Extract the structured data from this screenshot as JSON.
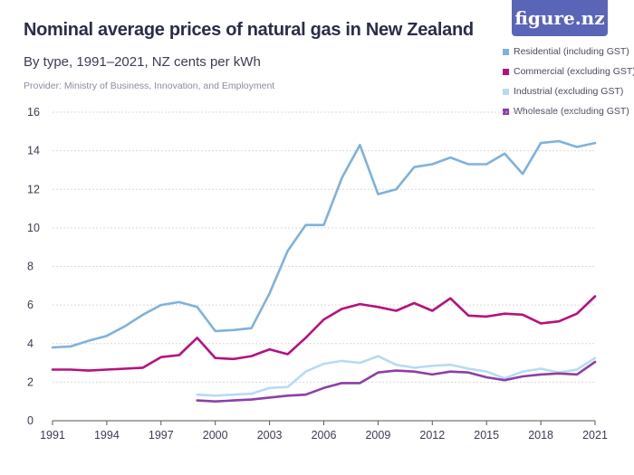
{
  "header": {
    "title": "Nominal average prices of natural gas in New Zealand",
    "subtitle": "By type, 1991–2021, NZ cents per kWh",
    "provider": "Provider: Ministry of Business, Innovation, and Employment",
    "logo_text": "figure.nz"
  },
  "colors": {
    "residential": "#7eb2dd",
    "commercial": "#b5117e",
    "industrial": "#b6dbf3",
    "wholesale": "#8c3fa5",
    "grid": "#d9d9d9",
    "axis": "#555555",
    "logo_bg": "#5b65b7"
  },
  "chart_data": {
    "type": "line",
    "title": "Nominal average prices of natural gas in New Zealand",
    "subtitle": "By type, 1991–2021, NZ cents per kWh",
    "xlabel": "",
    "ylabel": "",
    "xlim": [
      1991,
      2021
    ],
    "ylim": [
      0,
      16
    ],
    "x_ticks": [
      "1991",
      "1994",
      "1997",
      "2000",
      "2003",
      "2006",
      "2009",
      "2012",
      "2015",
      "2018",
      "2021"
    ],
    "y_ticks": [
      "0",
      "2",
      "4",
      "6",
      "8",
      "10",
      "12",
      "14",
      "16"
    ],
    "grid": "horizontal",
    "legend_position": "top-right",
    "series": [
      {
        "key": "residential",
        "name": "Residential (including GST)",
        "x": [
          1991,
          1992,
          1993,
          1994,
          1995,
          1996,
          1997,
          1998,
          1999,
          2000,
          2001,
          2002,
          2003,
          2004,
          2005,
          2006,
          2007,
          2008,
          2009,
          2010,
          2011,
          2012,
          2013,
          2014,
          2015,
          2016,
          2017,
          2018,
          2019,
          2020,
          2021
        ],
        "y": [
          3.8,
          3.85,
          4.15,
          4.4,
          4.9,
          5.5,
          6.0,
          6.15,
          5.9,
          4.65,
          4.7,
          4.8,
          6.6,
          8.8,
          10.15,
          10.15,
          12.6,
          14.3,
          11.75,
          12.0,
          13.15,
          13.3,
          13.65,
          13.3,
          13.3,
          13.85,
          12.8,
          14.4,
          14.5,
          14.2,
          14.4
        ]
      },
      {
        "key": "commercial",
        "name": "Commercial (excluding GST)",
        "x": [
          1991,
          1992,
          1993,
          1994,
          1995,
          1996,
          1997,
          1998,
          1999,
          2000,
          2001,
          2002,
          2003,
          2004,
          2005,
          2006,
          2007,
          2008,
          2009,
          2010,
          2011,
          2012,
          2013,
          2014,
          2015,
          2016,
          2017,
          2018,
          2019,
          2020,
          2021
        ],
        "y": [
          2.65,
          2.65,
          2.6,
          2.65,
          2.7,
          2.75,
          3.3,
          3.4,
          4.3,
          3.25,
          3.2,
          3.35,
          3.7,
          3.45,
          4.3,
          5.25,
          5.8,
          6.05,
          5.9,
          5.7,
          6.1,
          5.7,
          6.35,
          5.45,
          5.4,
          5.55,
          5.5,
          5.05,
          5.15,
          5.55,
          6.45
        ]
      },
      {
        "key": "industrial",
        "name": "Industrial (excluding GST)",
        "x": [
          1999,
          2000,
          2001,
          2002,
          2003,
          2004,
          2005,
          2006,
          2007,
          2008,
          2009,
          2010,
          2011,
          2012,
          2013,
          2014,
          2015,
          2016,
          2017,
          2018,
          2019,
          2020,
          2021
        ],
        "y": [
          1.35,
          1.3,
          1.35,
          1.4,
          1.7,
          1.75,
          2.55,
          2.95,
          3.1,
          3.0,
          3.35,
          2.9,
          2.75,
          2.85,
          2.9,
          2.7,
          2.55,
          2.2,
          2.55,
          2.7,
          2.5,
          2.65,
          3.25
        ]
      },
      {
        "key": "wholesale",
        "name": "Wholesale (excluding GST)",
        "x": [
          1999,
          2000,
          2001,
          2002,
          2003,
          2004,
          2005,
          2006,
          2007,
          2008,
          2009,
          2010,
          2011,
          2012,
          2013,
          2014,
          2015,
          2016,
          2017,
          2018,
          2019,
          2020,
          2021
        ],
        "y": [
          1.05,
          1.0,
          1.05,
          1.1,
          1.2,
          1.3,
          1.35,
          1.7,
          1.95,
          1.95,
          2.5,
          2.6,
          2.55,
          2.4,
          2.55,
          2.5,
          2.25,
          2.1,
          2.3,
          2.4,
          2.45,
          2.4,
          3.05
        ]
      }
    ]
  }
}
